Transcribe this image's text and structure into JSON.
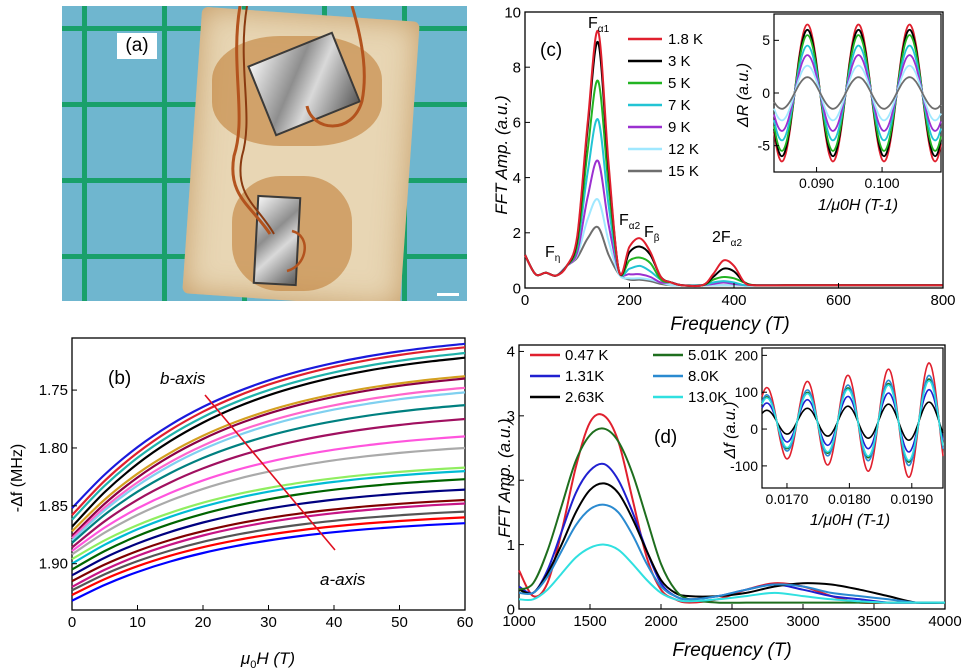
{
  "panel_a": {
    "label": "(a)"
  },
  "panel_b": {
    "label": "(b)",
    "ylabel": "-Δf (MHz)",
    "xlabel_pre": "μ",
    "xlabel_sub": "0",
    "xlabel_post": "H (T)",
    "xticks": [
      "0",
      "10",
      "20",
      "30",
      "40",
      "50",
      "60"
    ],
    "yticks": [
      "1.75",
      "1.80",
      "1.85",
      "1.90"
    ],
    "annot_b": "b-axis",
    "annot_a": "a-axis",
    "colors": [
      "#1a1adc",
      "#e0202e",
      "#20b2aa",
      "#000000",
      "#d4a020",
      "#8b0046",
      "#ff66cc",
      "#80d0f0",
      "#008080",
      "#a01060",
      "#ff55dd",
      "#aaaaaa",
      "#90ee60",
      "#00bcd4",
      "#006400",
      "#000080",
      "#800000",
      "#c71585",
      "#555555",
      "#ff0000",
      "#0000ff"
    ]
  },
  "panel_c": {
    "label": "(c)",
    "ylabel": "FFT Amp. (a.u.)",
    "xlabel": "Frequency (T)",
    "xticks": [
      "0",
      "200",
      "400",
      "600",
      "800"
    ],
    "yticks": [
      "0",
      "2",
      "4",
      "6",
      "8",
      "10"
    ],
    "peak_labels": {
      "f_a1": "F",
      "f_a1_sub": "α1",
      "f_a2": "F",
      "f_a2_sub": "α2",
      "f_b": "F",
      "f_b_sub": "β",
      "f_eta": "F",
      "f_eta_sub": "η",
      "two_f": "2F",
      "two_f_sub": "α2"
    },
    "legend": [
      {
        "name": "1.8 K",
        "color": "#e0202e"
      },
      {
        "name": "3 K",
        "color": "#000000"
      },
      {
        "name": "5 K",
        "color": "#22b422"
      },
      {
        "name": "7 K",
        "color": "#22c4d4"
      },
      {
        "name": "9 K",
        "color": "#9b30d0"
      },
      {
        "name": "12 K",
        "color": "#a0e8ff"
      },
      {
        "name": "15 K",
        "color": "#6e6e6e"
      }
    ],
    "inset": {
      "ylabel": "ΔR (a.u.)",
      "xlabel": "1/μ0H (T-1)",
      "xticks": [
        "0.090",
        "0.100"
      ],
      "yticks": [
        "5",
        "0",
        "-5"
      ]
    }
  },
  "panel_d": {
    "label": "(d)",
    "ylabel": "FFT Amp. (a.u.)",
    "xlabel": "Frequency (T)",
    "xticks": [
      "1000",
      "1500",
      "2000",
      "2500",
      "3000",
      "3500",
      "4000"
    ],
    "yticks": [
      "0",
      "1",
      "2",
      "3",
      "4"
    ],
    "legend": [
      {
        "name": "0.47 K",
        "color": "#e0202e"
      },
      {
        "name": "1.31K",
        "color": "#2020d0"
      },
      {
        "name": "2.63K",
        "color": "#000000"
      },
      {
        "name": "5.01K",
        "color": "#1e6e1e"
      },
      {
        "name": "8.0K",
        "color": "#2a8ad0"
      },
      {
        "name": "13.0K",
        "color": "#30e0e0"
      }
    ],
    "inset": {
      "ylabel": "Δf (a.u.)",
      "xlabel": "1/μ0H (T-1)",
      "xticks": [
        "0.0170",
        "0.0180",
        "0.0190"
      ],
      "yticks": [
        "200",
        "100",
        "0",
        "-100"
      ]
    }
  },
  "chart_data": [
    {
      "type": "line",
      "panel": "c",
      "xlabel": "Frequency (T)",
      "ylabel": "FFT Amp. (a.u.)",
      "xlim": [
        0,
        800
      ],
      "ylim": [
        0,
        10
      ],
      "x": [
        0,
        20,
        40,
        60,
        80,
        100,
        120,
        140,
        160,
        180,
        200,
        220,
        240,
        260,
        280,
        300,
        340,
        360,
        380,
        400,
        420,
        440,
        500,
        600,
        700,
        800
      ],
      "series": [
        {
          "name": "1.8 K",
          "values": [
            1.2,
            0.5,
            0.55,
            0.45,
            0.8,
            1.9,
            6.0,
            9.3,
            4.5,
            0.6,
            1.5,
            1.8,
            1.3,
            0.4,
            0.2,
            0.1,
            0.1,
            0.5,
            1.0,
            0.8,
            0.2,
            0.1,
            0.1,
            0.1,
            0.1,
            0.1
          ]
        },
        {
          "name": "3 K",
          "values": [
            1.2,
            0.5,
            0.55,
            0.45,
            0.8,
            1.8,
            5.8,
            8.9,
            4.3,
            0.6,
            1.3,
            1.5,
            1.2,
            0.4,
            0.2,
            0.1,
            0.1,
            0.4,
            0.7,
            0.6,
            0.2,
            0.1,
            0.1,
            0.1,
            0.1,
            0.1
          ]
        },
        {
          "name": "5 K",
          "values": [
            1.2,
            0.5,
            0.55,
            0.45,
            0.8,
            1.6,
            5.0,
            7.5,
            3.7,
            0.6,
            1.0,
            1.1,
            0.9,
            0.3,
            0.2,
            0.1,
            0.1,
            0.3,
            0.4,
            0.35,
            0.2,
            0.1,
            0.1,
            0.1,
            0.1,
            0.1
          ]
        },
        {
          "name": "7 K",
          "values": [
            1.2,
            0.5,
            0.55,
            0.45,
            0.8,
            1.5,
            4.2,
            6.1,
            3.0,
            0.6,
            0.7,
            0.8,
            0.6,
            0.3,
            0.2,
            0.1,
            0.1,
            0.2,
            0.25,
            0.2,
            0.1,
            0.1,
            0.1,
            0.1,
            0.1,
            0.1
          ]
        },
        {
          "name": "9 K",
          "values": [
            1.2,
            0.5,
            0.55,
            0.45,
            0.8,
            1.3,
            3.3,
            4.6,
            2.3,
            0.6,
            0.5,
            0.5,
            0.4,
            0.2,
            0.2,
            0.1,
            0.1,
            0.15,
            0.2,
            0.15,
            0.1,
            0.1,
            0.1,
            0.1,
            0.1,
            0.1
          ]
        },
        {
          "name": "12 K",
          "values": [
            1.2,
            0.5,
            0.55,
            0.45,
            0.8,
            1.2,
            2.5,
            3.2,
            1.7,
            0.5,
            0.35,
            0.35,
            0.3,
            0.2,
            0.1,
            0.1,
            0.1,
            0.1,
            0.1,
            0.1,
            0.1,
            0.1,
            0.1,
            0.1,
            0.1,
            0.1
          ]
        },
        {
          "name": "15 K",
          "values": [
            1.2,
            0.5,
            0.55,
            0.45,
            0.8,
            1.1,
            1.8,
            2.2,
            1.2,
            0.5,
            0.3,
            0.3,
            0.25,
            0.15,
            0.1,
            0.1,
            0.1,
            0.1,
            0.1,
            0.1,
            0.1,
            0.1,
            0.1,
            0.1,
            0.1,
            0.1
          ]
        }
      ]
    },
    {
      "type": "line",
      "panel": "d",
      "xlabel": "Frequency (T)",
      "ylabel": "FFT Amp. (a.u.)",
      "xlim": [
        1000,
        4000
      ],
      "ylim": [
        0,
        4
      ],
      "x": [
        1000,
        1100,
        1200,
        1300,
        1400,
        1500,
        1600,
        1700,
        1800,
        1900,
        2000,
        2100,
        2200,
        2400,
        2600,
        2800,
        3000,
        3200,
        3400,
        3600,
        3800,
        4000
      ],
      "series": [
        {
          "name": "0.47 K",
          "values": [
            0.6,
            0.2,
            0.4,
            1.2,
            2.2,
            2.9,
            3.0,
            2.6,
            1.7,
            0.8,
            0.3,
            0.15,
            0.1,
            0.15,
            0.3,
            0.4,
            0.35,
            0.2,
            0.1,
            0.1,
            0.1,
            0.1
          ]
        },
        {
          "name": "1.31K",
          "values": [
            0.35,
            0.25,
            0.6,
            1.2,
            1.8,
            2.15,
            2.25,
            2.0,
            1.5,
            0.9,
            0.4,
            0.2,
            0.15,
            0.2,
            0.3,
            0.38,
            0.3,
            0.2,
            0.15,
            0.1,
            0.1,
            0.1
          ]
        },
        {
          "name": "2.63K",
          "values": [
            0.3,
            0.25,
            0.55,
            1.0,
            1.5,
            1.85,
            1.95,
            1.8,
            1.4,
            0.9,
            0.45,
            0.25,
            0.2,
            0.2,
            0.25,
            0.35,
            0.4,
            0.38,
            0.3,
            0.2,
            0.1,
            0.1
          ]
        },
        {
          "name": "5.01K",
          "values": [
            0.3,
            0.4,
            0.9,
            1.6,
            2.3,
            2.7,
            2.8,
            2.6,
            2.1,
            1.4,
            0.7,
            0.3,
            0.15,
            0.1,
            0.1,
            0.1,
            0.1,
            0.1,
            0.1,
            0.1,
            0.1,
            0.1
          ]
        },
        {
          "name": "8.0K",
          "values": [
            0.25,
            0.25,
            0.5,
            0.9,
            1.3,
            1.55,
            1.62,
            1.5,
            1.15,
            0.7,
            0.35,
            0.2,
            0.15,
            0.2,
            0.3,
            0.38,
            0.35,
            0.25,
            0.2,
            0.15,
            0.1,
            0.1
          ]
        },
        {
          "name": "13.0K",
          "values": [
            0.15,
            0.15,
            0.3,
            0.55,
            0.8,
            0.95,
            1.0,
            0.92,
            0.7,
            0.45,
            0.25,
            0.15,
            0.12,
            0.15,
            0.2,
            0.25,
            0.2,
            0.15,
            0.12,
            0.1,
            0.1,
            0.1
          ]
        }
      ]
    },
    {
      "type": "line",
      "panel": "b",
      "xlabel": "μ0H (T)",
      "ylabel": "-Δf (MHz)",
      "xlim": [
        0,
        60
      ],
      "ylim": [
        1.94,
        1.705
      ],
      "field": [
        0,
        5,
        10,
        15,
        20,
        25,
        30,
        35,
        40,
        45,
        50,
        55,
        60
      ],
      "start_values": [
        1.852,
        1.858,
        1.862,
        1.868,
        1.872,
        1.876,
        1.878,
        1.88,
        1.882,
        1.886,
        1.889,
        1.892,
        1.896,
        1.9,
        1.905,
        1.91,
        1.915,
        1.92,
        1.923,
        1.927,
        1.932
      ],
      "end_values": [
        1.71,
        1.713,
        1.718,
        1.722,
        1.738,
        1.74,
        1.748,
        1.752,
        1.763,
        1.775,
        1.79,
        1.8,
        1.817,
        1.82,
        1.827,
        1.836,
        1.845,
        1.848,
        1.855,
        1.86,
        1.865
      ]
    }
  ]
}
